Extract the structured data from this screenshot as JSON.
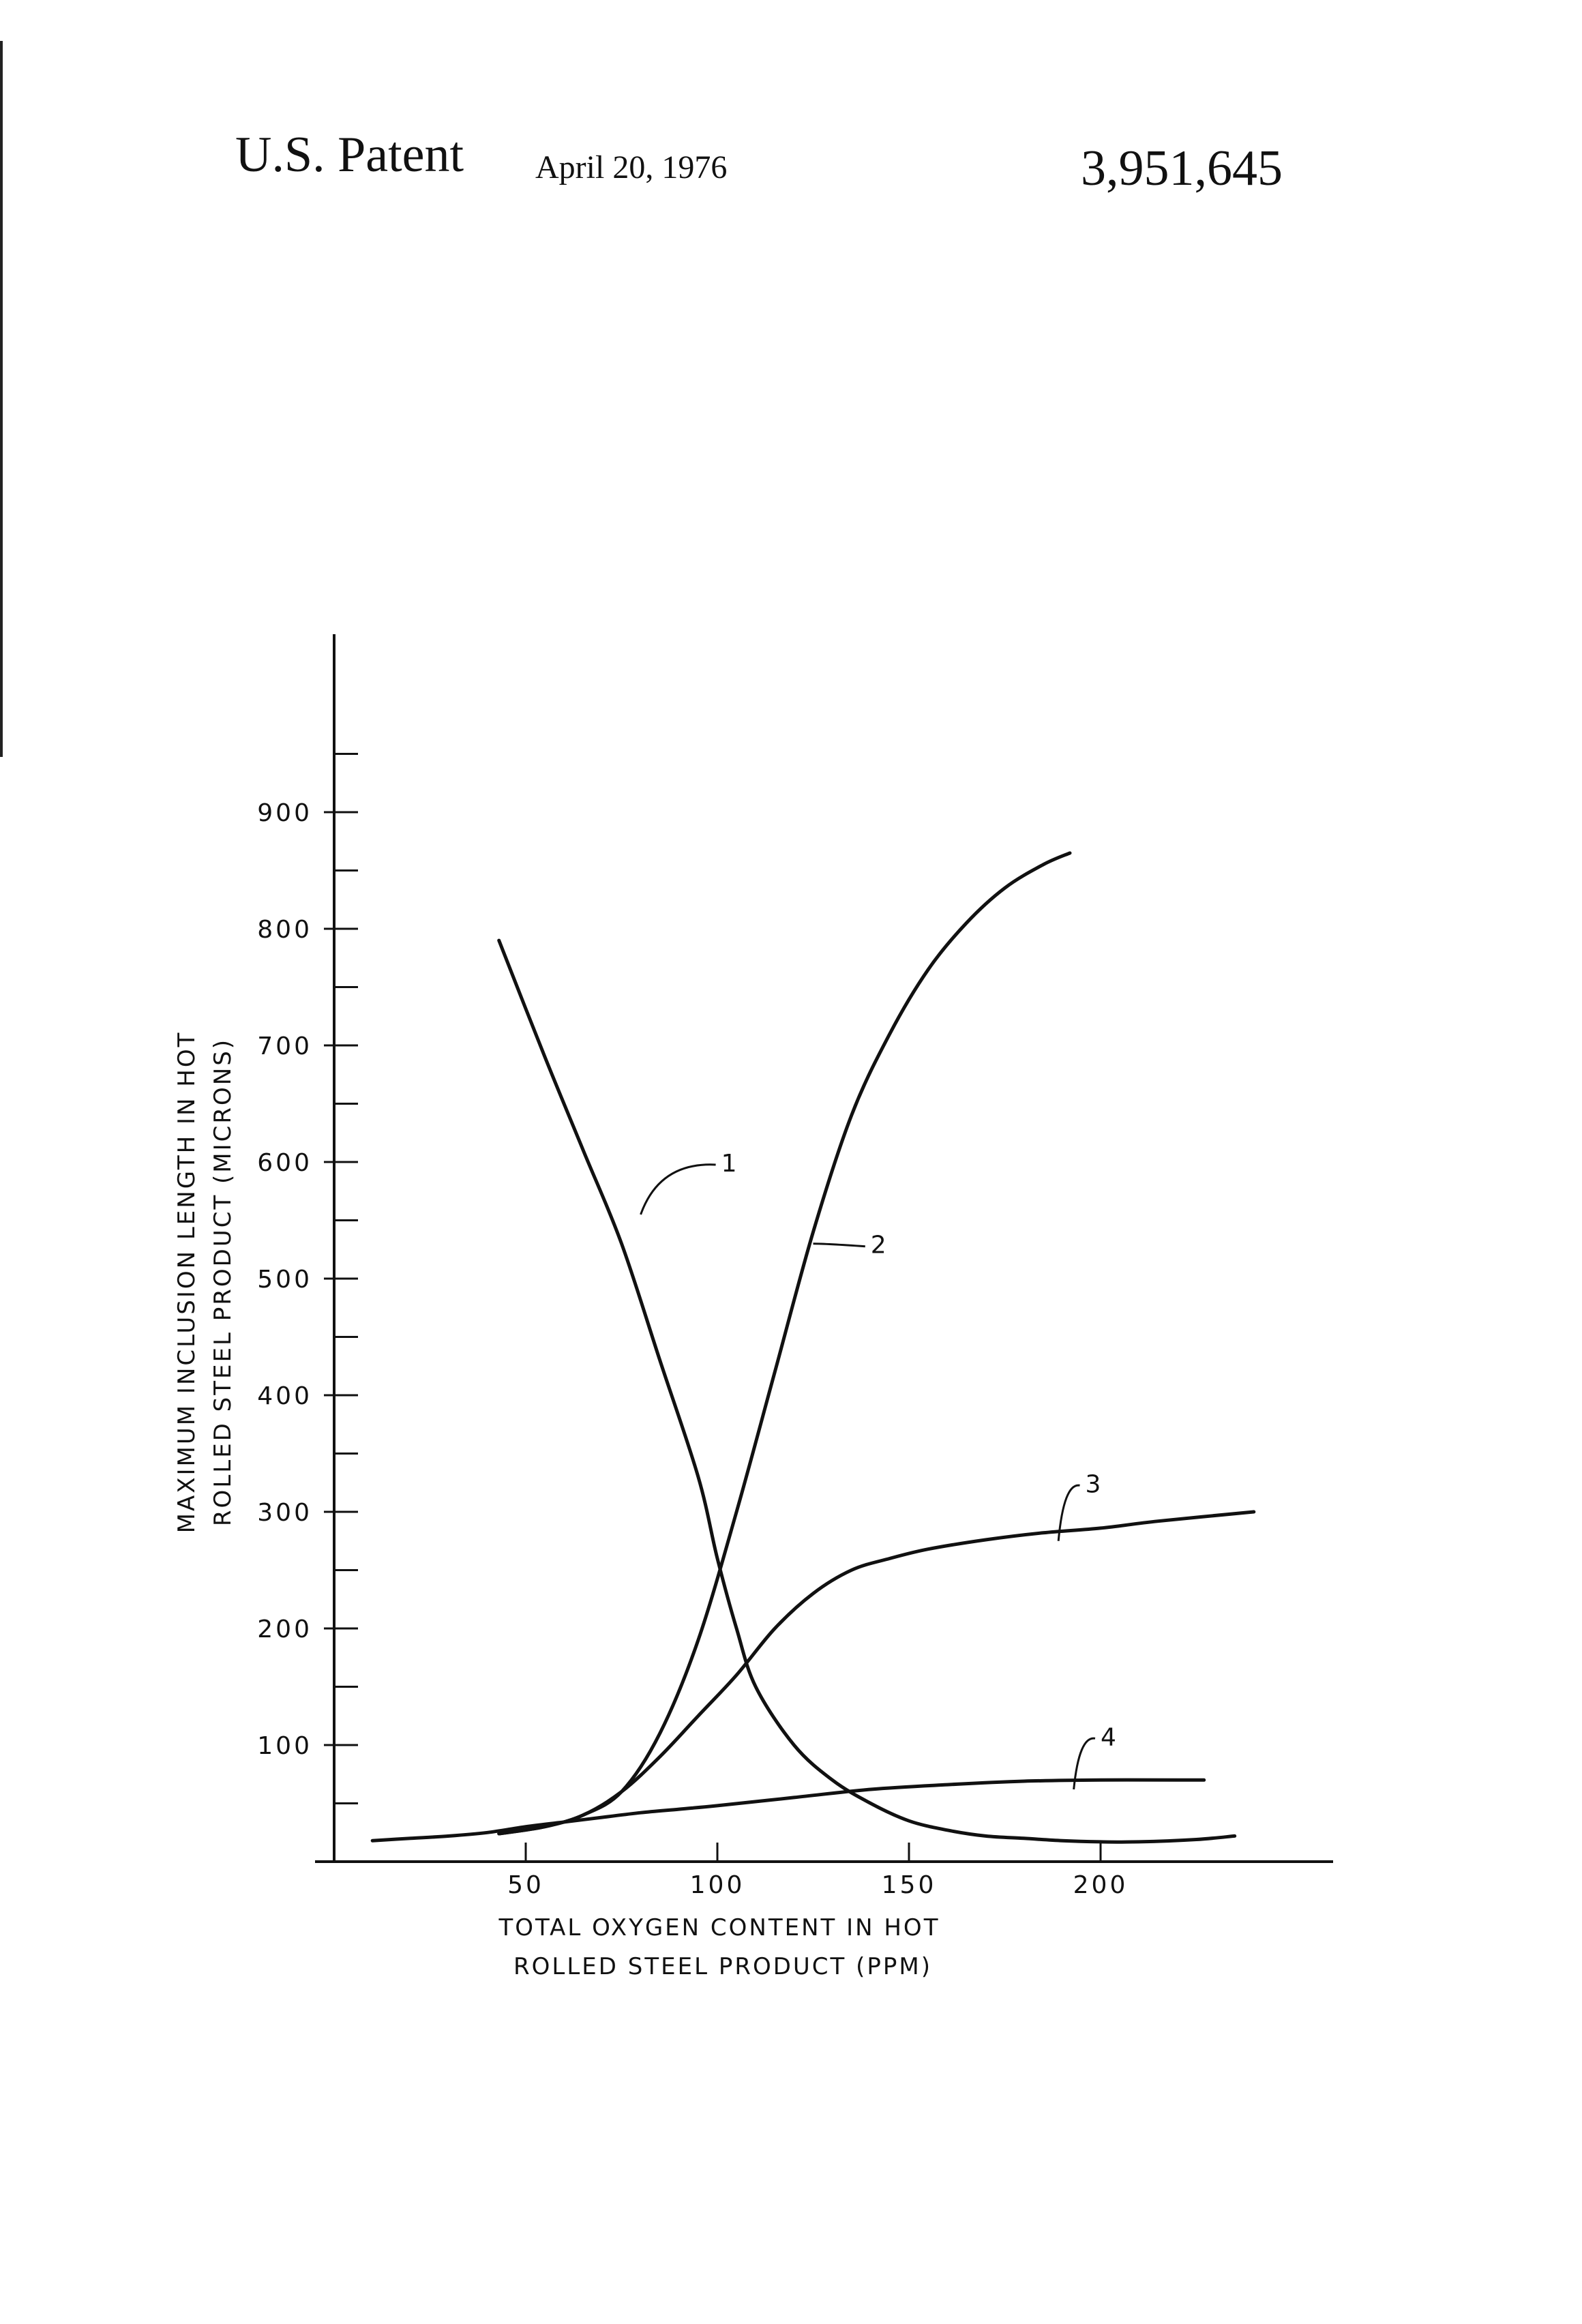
{
  "header": {
    "patent": "U.S. Patent",
    "date": "April 20, 1976",
    "number": "3,951,645"
  },
  "chart_data": {
    "type": "line",
    "title": "",
    "xlabel": [
      "TOTAL OXYGEN CONTENT IN HOT",
      "ROLLED STEEL PRODUCT (PPM)"
    ],
    "ylabel": [
      "MAXIMUM INCLUSION LENGTH IN HOT",
      "ROLLED STEEL PRODUCT (MICRONS)"
    ],
    "xlim": [
      0,
      255
    ],
    "ylim": [
      0,
      1000
    ],
    "x_ticks": [
      50,
      100,
      150,
      200
    ],
    "x_tick_labels": [
      "50",
      "100",
      "150",
      "200"
    ],
    "y_ticks": [
      100,
      200,
      300,
      400,
      500,
      600,
      700,
      800,
      900
    ],
    "y_tick_labels": [
      "100",
      "200",
      "300",
      "400",
      "500",
      "600",
      "700",
      "800",
      "900"
    ],
    "y_minor_ticks": [
      50,
      150,
      250,
      350,
      450,
      550,
      650,
      750,
      850,
      950
    ],
    "grid": false,
    "legend": "none",
    "series": [
      {
        "name": "1",
        "points": [
          [
            43,
            790
          ],
          [
            55,
            690
          ],
          [
            65,
            610
          ],
          [
            75,
            530
          ],
          [
            85,
            430
          ],
          [
            95,
            330
          ],
          [
            100,
            260
          ],
          [
            105,
            200
          ],
          [
            110,
            150
          ],
          [
            120,
            100
          ],
          [
            130,
            70
          ],
          [
            140,
            50
          ],
          [
            150,
            35
          ],
          [
            160,
            27
          ],
          [
            170,
            22
          ],
          [
            180,
            20
          ],
          [
            190,
            18
          ],
          [
            200,
            17
          ],
          [
            210,
            17
          ],
          [
            225,
            19
          ],
          [
            235,
            22
          ]
        ]
      },
      {
        "name": "2",
        "points": [
          [
            43,
            24
          ],
          [
            55,
            30
          ],
          [
            65,
            40
          ],
          [
            75,
            60
          ],
          [
            85,
            110
          ],
          [
            95,
            190
          ],
          [
            105,
            300
          ],
          [
            115,
            420
          ],
          [
            125,
            540
          ],
          [
            135,
            640
          ],
          [
            145,
            710
          ],
          [
            155,
            765
          ],
          [
            165,
            805
          ],
          [
            175,
            835
          ],
          [
            185,
            855
          ],
          [
            192,
            865
          ]
        ]
      },
      {
        "name": "3",
        "points": [
          [
            43,
            24
          ],
          [
            55,
            30
          ],
          [
            65,
            40
          ],
          [
            75,
            60
          ],
          [
            85,
            90
          ],
          [
            95,
            125
          ],
          [
            105,
            160
          ],
          [
            115,
            200
          ],
          [
            125,
            230
          ],
          [
            135,
            250
          ],
          [
            145,
            260
          ],
          [
            155,
            268
          ],
          [
            170,
            276
          ],
          [
            185,
            282
          ],
          [
            200,
            286
          ],
          [
            215,
            292
          ],
          [
            240,
            300
          ]
        ]
      },
      {
        "name": "4",
        "points": [
          [
            10,
            18
          ],
          [
            20,
            20
          ],
          [
            30,
            22
          ],
          [
            40,
            25
          ],
          [
            50,
            30
          ],
          [
            60,
            34
          ],
          [
            70,
            38
          ],
          [
            80,
            42
          ],
          [
            90,
            45
          ],
          [
            100,
            48
          ],
          [
            120,
            55
          ],
          [
            140,
            62
          ],
          [
            160,
            66
          ],
          [
            180,
            69
          ],
          [
            200,
            70
          ],
          [
            220,
            70
          ],
          [
            227,
            70
          ]
        ]
      }
    ],
    "label_positions_data": [
      {
        "name": "1",
        "curve_point": [
          80,
          555
        ],
        "text_point": [
          101,
          600
        ]
      },
      {
        "name": "2",
        "curve_point": [
          125,
          530
        ],
        "text_point": [
          140,
          530
        ]
      },
      {
        "name": "3",
        "curve_point": [
          189,
          275
        ],
        "text_point": [
          196,
          325
        ]
      },
      {
        "name": "4",
        "curve_point": [
          193,
          62
        ],
        "text_point": [
          200,
          108
        ]
      }
    ]
  }
}
